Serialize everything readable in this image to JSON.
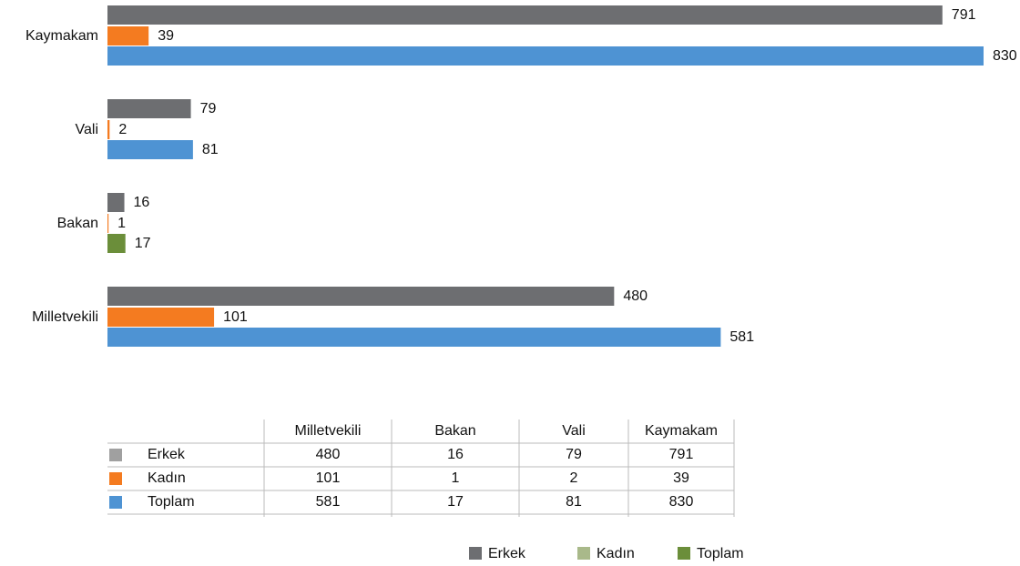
{
  "chart_data": {
    "type": "hbar",
    "categories": [
      "Milletvekili",
      "Bakan",
      "Vali",
      "Kaymakam"
    ],
    "series": [
      {
        "name": "Erkek",
        "color": "#6d6e71",
        "values": [
          480,
          16,
          79,
          791
        ]
      },
      {
        "name": "Kadın",
        "color": "#f47b20",
        "values": [
          101,
          1,
          2,
          39
        ]
      },
      {
        "name": "Toplam",
        "color": "#4e93d3",
        "values": [
          581,
          17,
          81,
          830
        ],
        "point_colors": [
          "#4e93d3",
          "#6b8e3a",
          "#4e93d3",
          "#4e93d3"
        ]
      }
    ],
    "xlim": [
      0,
      830
    ],
    "legend": {
      "position": "bottom",
      "colors": [
        "#6d6e71",
        "#a9b98a",
        "#6b8e3a"
      ]
    },
    "table": {
      "key_colors": [
        "#a0a0a0",
        "#f47b20",
        "#4e93d3"
      ]
    }
  }
}
